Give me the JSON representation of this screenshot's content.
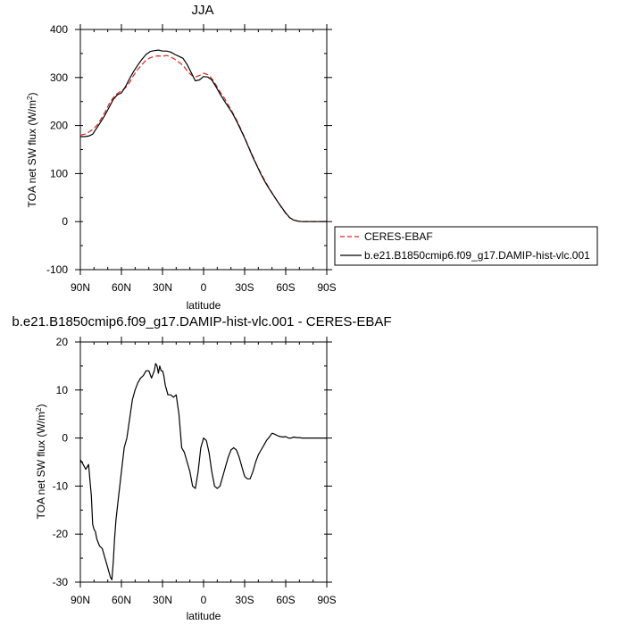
{
  "chart_data": [
    {
      "type": "line",
      "title": "JJA",
      "xlabel": "latitude",
      "ylabel_main": "TOA net SW flux (W/m",
      "ylabel_sup": "2",
      "ylabel_tail": ")",
      "xlim": [
        90,
        -90
      ],
      "ylim": [
        -100,
        400
      ],
      "x_ticks": [
        {
          "value": 90,
          "label": "90N"
        },
        {
          "value": 60,
          "label": "60N"
        },
        {
          "value": 30,
          "label": "30N"
        },
        {
          "value": 0,
          "label": "0"
        },
        {
          "value": -30,
          "label": "30S"
        },
        {
          "value": -60,
          "label": "60S"
        },
        {
          "value": -90,
          "label": "90S"
        }
      ],
      "y_ticks": [
        {
          "value": 400,
          "label": "400"
        },
        {
          "value": 300,
          "label": "300"
        },
        {
          "value": 200,
          "label": "200"
        },
        {
          "value": 100,
          "label": "100"
        },
        {
          "value": 0,
          "label": "0"
        },
        {
          "value": -100,
          "label": "-100"
        }
      ],
      "legend_position": "right",
      "series": [
        {
          "name": "CERES-EBAF",
          "color": "#dd2222",
          "dash": "dashed",
          "x": [
            90,
            87,
            84,
            81,
            78,
            75,
            72,
            69,
            66,
            63,
            60,
            57,
            54,
            51,
            48,
            45,
            42,
            39,
            36,
            33,
            30,
            27,
            24,
            21,
            18,
            15,
            12,
            9,
            6,
            3,
            0,
            -3,
            -6,
            -9,
            -12,
            -15,
            -18,
            -21,
            -24,
            -27,
            -30,
            -33,
            -36,
            -39,
            -42,
            -45,
            -48,
            -51,
            -54,
            -57,
            -60,
            -63,
            -66,
            -69,
            -72,
            -75,
            -78,
            -81,
            -84,
            -87,
            -90
          ],
          "y": [
            180,
            182,
            186,
            192,
            200,
            213,
            228,
            245,
            258,
            267,
            272,
            279,
            290,
            305,
            317,
            327,
            336,
            341,
            344,
            345,
            344,
            346,
            343,
            338,
            332,
            325,
            314,
            305,
            301,
            304,
            309,
            306,
            298,
            285,
            270,
            258,
            243,
            228,
            212,
            194,
            175,
            155,
            136,
            117,
            100,
            84,
            69,
            55,
            42,
            29,
            17,
            8,
            3,
            1,
            0,
            0,
            0,
            0,
            0,
            0,
            0
          ]
        },
        {
          "name": "b.e21.B1850cmip6.f09_g17.DAMIP-hist-vlc.001",
          "color": "#000000",
          "dash": "solid",
          "x": [
            90,
            87,
            84,
            81,
            78,
            75,
            72,
            69,
            66,
            63,
            60,
            57,
            54,
            51,
            48,
            45,
            42,
            39,
            36,
            33,
            30,
            27,
            24,
            21,
            18,
            15,
            12,
            9,
            6,
            3,
            0,
            -3,
            -6,
            -9,
            -12,
            -15,
            -18,
            -21,
            -24,
            -27,
            -30,
            -33,
            -36,
            -39,
            -42,
            -45,
            -48,
            -51,
            -54,
            -57,
            -60,
            -63,
            -66,
            -69,
            -72,
            -75,
            -78,
            -81,
            -84,
            -87,
            -90
          ],
          "y": [
            177,
            177,
            178,
            182,
            195,
            208,
            222,
            238,
            254,
            264,
            268,
            281,
            298,
            313,
            326,
            338,
            348,
            354,
            356,
            357,
            355,
            355,
            353,
            348,
            344,
            340,
            327,
            310,
            293,
            295,
            302,
            301,
            295,
            281,
            266,
            252,
            239,
            226,
            210,
            192,
            174,
            154,
            134,
            116,
            98,
            82,
            68,
            55,
            42,
            30,
            18,
            8,
            3,
            1,
            0,
            0,
            0,
            0,
            0,
            0,
            0
          ]
        }
      ]
    },
    {
      "type": "line",
      "title": "b.e21.B1850cmip6.f09_g17.DAMIP-hist-vlc.001 - CERES-EBAF",
      "xlabel": "latitude",
      "ylabel_main": "TOA net SW flux (W/m",
      "ylabel_sup": "2",
      "ylabel_tail": ")",
      "xlim": [
        90,
        -90
      ],
      "ylim": [
        -30,
        20
      ],
      "x_ticks": [
        {
          "value": 90,
          "label": "90N"
        },
        {
          "value": 60,
          "label": "60N"
        },
        {
          "value": 30,
          "label": "30N"
        },
        {
          "value": 0,
          "label": "0"
        },
        {
          "value": -30,
          "label": "30S"
        },
        {
          "value": -60,
          "label": "60S"
        },
        {
          "value": -90,
          "label": "90S"
        }
      ],
      "y_ticks": [
        {
          "value": 20,
          "label": "20"
        },
        {
          "value": 10,
          "label": "10"
        },
        {
          "value": 0,
          "label": "0"
        },
        {
          "value": -10,
          "label": "-10"
        },
        {
          "value": -20,
          "label": "-20"
        },
        {
          "value": -30,
          "label": "-30"
        }
      ],
      "series": [
        {
          "color": "#000000",
          "dash": "solid",
          "x": [
            90,
            88,
            86,
            84,
            82,
            81,
            80,
            79,
            78,
            76,
            74,
            72,
            70,
            68,
            67,
            66,
            65,
            64,
            62,
            60,
            58,
            56,
            54,
            52,
            50,
            48,
            46,
            44,
            42,
            40,
            38,
            36,
            35,
            34,
            33,
            32,
            31,
            30,
            29,
            28,
            26,
            24,
            22,
            20,
            18,
            16,
            14,
            12,
            10,
            8,
            6,
            4,
            2,
            0,
            -2,
            -4,
            -6,
            -8,
            -10,
            -12,
            -14,
            -16,
            -18,
            -20,
            -22,
            -24,
            -26,
            -28,
            -30,
            -32,
            -34,
            -36,
            -38,
            -40,
            -42,
            -44,
            -46,
            -48,
            -50,
            -52,
            -54,
            -56,
            -58,
            -60,
            -62,
            -64,
            -66,
            -68,
            -70,
            -72,
            -74,
            -76,
            -78,
            -80,
            -82,
            -84,
            -86,
            -88,
            -90
          ],
          "y": [
            -4.5,
            -5.5,
            -6.5,
            -5.5,
            -12,
            -18,
            -19,
            -19.5,
            -21,
            -22.5,
            -23,
            -25,
            -27,
            -29,
            -29.5,
            -26,
            -21,
            -17,
            -12,
            -7,
            -2,
            0,
            4,
            8,
            10,
            11.5,
            12.5,
            13,
            14,
            14,
            12.5,
            14,
            15.5,
            15,
            13.5,
            15,
            14,
            14,
            13,
            11,
            9,
            9,
            8.5,
            9,
            5,
            -2,
            -3,
            -5,
            -7,
            -10,
            -10.5,
            -7,
            -2,
            0,
            -0.5,
            -3,
            -7,
            -10,
            -10.5,
            -10,
            -8,
            -6,
            -4,
            -2.5,
            -2,
            -2.5,
            -4,
            -6,
            -8,
            -8.5,
            -8.5,
            -7,
            -5,
            -3.5,
            -2.5,
            -1.5,
            -0.5,
            0.2,
            1,
            0.8,
            0.5,
            0.3,
            0.2,
            0.3,
            0,
            0,
            0.2,
            0.1,
            0.1,
            0,
            0,
            0,
            0,
            0,
            0,
            0,
            0,
            0,
            0
          ]
        }
      ]
    }
  ]
}
